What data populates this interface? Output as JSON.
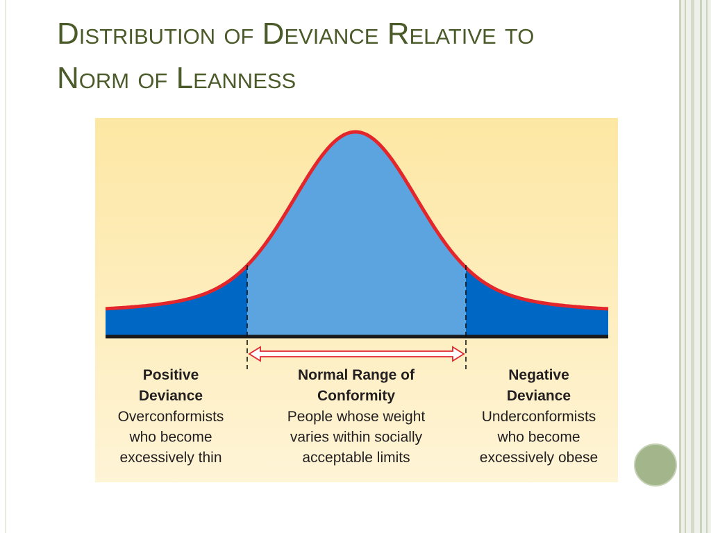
{
  "title": [
    "Distribution of Deviance Relative to",
    "Norm of Leanness"
  ],
  "sections": [
    {
      "heading": [
        "Positive",
        "Deviance"
      ],
      "description": [
        "Overconformists",
        "who become",
        "excessively thin"
      ]
    },
    {
      "heading": [
        "Normal Range of",
        "Conformity"
      ],
      "description": [
        "People whose weight",
        "varies within socially",
        "acceptable limits"
      ]
    },
    {
      "heading": [
        "Negative",
        "Deviance"
      ],
      "description": [
        "Underconformists",
        "who become",
        "excessively obese"
      ]
    }
  ]
}
